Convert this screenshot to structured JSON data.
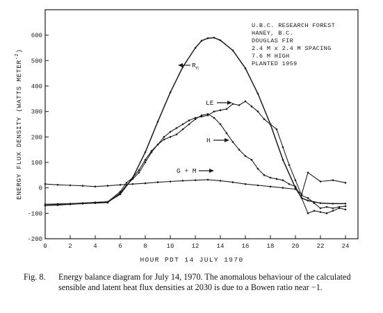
{
  "chart_data": {
    "type": "line",
    "xlabel": "HOUR PDT 14 JULY 1970",
    "ylabel": "ENERGY FLUX DENSITY (WATTS METER",
    "ylabel_exp": "-2",
    "ylabel_close": ")",
    "xlim": [
      0,
      25
    ],
    "ylim": [
      -200,
      700
    ],
    "xticks": [
      "0",
      "2",
      "4",
      "6",
      "8",
      "10",
      "12",
      "14",
      "16",
      "18",
      "20",
      "22",
      "24"
    ],
    "yticks": [
      "-200",
      "-100",
      "0",
      "100",
      "200",
      "300",
      "400",
      "500",
      "600"
    ],
    "site_info": [
      "U.B.C. RESEARCH FOREST",
      "HANEY, B.C.",
      "DOUGLAS FIR",
      "2.4 M x 2.4 M SPACING",
      "7.6 M HIGH",
      "PLANTED 1959"
    ],
    "series": [
      {
        "name": "R",
        "name_sub": "n",
        "x": [
          0,
          1,
          2,
          3,
          4,
          5,
          6,
          7,
          8,
          9,
          10,
          11,
          12,
          12.5,
          13,
          13.5,
          14,
          15,
          16,
          17,
          18,
          19,
          20,
          20.5,
          21,
          22,
          23,
          24
        ],
        "y": [
          -65,
          -65,
          -63,
          -60,
          -58,
          -55,
          -25,
          40,
          140,
          260,
          375,
          475,
          550,
          578,
          588,
          590,
          580,
          540,
          470,
          370,
          250,
          110,
          0,
          -40,
          -50,
          -60,
          -62,
          -62
        ]
      },
      {
        "name": "LE",
        "x": [
          0,
          1,
          2,
          3,
          4,
          5,
          6,
          6.5,
          7,
          7.5,
          8,
          8.5,
          9,
          9.5,
          10,
          10.5,
          11,
          11.5,
          12,
          12.5,
          13,
          13.5,
          14,
          14.5,
          15,
          15.5,
          16,
          16.5,
          17,
          17.5,
          18,
          18.5,
          19,
          19.5,
          20,
          20.5,
          21,
          21.5,
          22,
          22.5,
          23,
          23.5,
          24
        ],
        "y": [
          -70,
          -68,
          -65,
          -62,
          -60,
          -58,
          -20,
          10,
          35,
          60,
          100,
          140,
          170,
          200,
          220,
          235,
          250,
          265,
          275,
          280,
          285,
          300,
          305,
          310,
          330,
          325,
          340,
          320,
          300,
          270,
          250,
          230,
          160,
          90,
          30,
          -30,
          -40,
          -60,
          -80,
          -75,
          -80,
          -75,
          -72
        ]
      },
      {
        "name": "H",
        "x": [
          0,
          1,
          2,
          3,
          4,
          5,
          6,
          6.5,
          7,
          7.5,
          8,
          8.5,
          9,
          9.5,
          10,
          10.5,
          11,
          11.5,
          12,
          12.5,
          13,
          13.5,
          14,
          14.5,
          15,
          15.5,
          16,
          16.5,
          17,
          17.5,
          18,
          18.5,
          19,
          19.5,
          20,
          20.5,
          21,
          21.5,
          22,
          22.5,
          23,
          23.5,
          24
        ],
        "y": [
          -65,
          -63,
          -62,
          -60,
          -57,
          -55,
          -15,
          20,
          40,
          70,
          110,
          145,
          170,
          190,
          200,
          210,
          230,
          250,
          270,
          285,
          290,
          275,
          250,
          215,
          180,
          150,
          125,
          110,
          75,
          50,
          40,
          35,
          30,
          15,
          5,
          -40,
          -100,
          -90,
          -95,
          -100,
          -90,
          -80,
          -85
        ]
      },
      {
        "name": "G + M",
        "x": [
          0,
          1,
          2,
          3,
          4,
          5,
          6,
          7,
          8,
          9,
          10,
          11,
          12,
          13,
          14,
          15,
          16,
          17,
          18,
          19,
          20,
          20.5,
          21,
          22,
          23,
          24
        ],
        "y": [
          15,
          12,
          10,
          8,
          5,
          8,
          12,
          15,
          18,
          22,
          25,
          28,
          30,
          32,
          28,
          22,
          15,
          10,
          5,
          0,
          -5,
          -25,
          60,
          25,
          30,
          20
        ]
      }
    ]
  },
  "caption": {
    "label": "Fig. 8.",
    "line1": "Energy balance diagram for July 14, 1970. The anomalous behaviour of the calculated",
    "line2": "sensible and latent heat flux densities at 2030 is due to a Bowen ratio near −1."
  }
}
